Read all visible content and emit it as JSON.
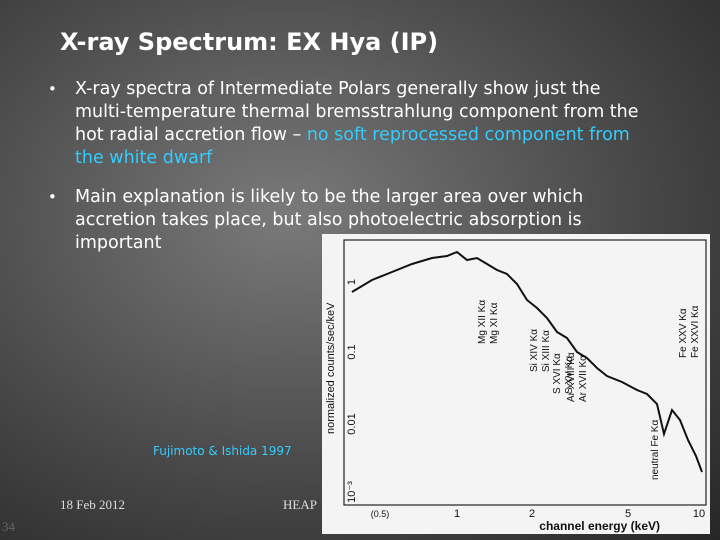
{
  "slide": {
    "title": "X-ray Spectrum: EX Hya (IP)",
    "bullets": [
      {
        "text": "X-ray spectra of Intermediate Polars generally show just the multi-temperature thermal bremsstrahlung component from the hot radial accretion flow – ",
        "highlight": "no soft reprocessed component from the white dwarf"
      },
      {
        "text": "Main explanation is likely to be the larger area over which accretion takes place, but also photoelectric absorption is important",
        "highlight": null
      }
    ],
    "caption": "Fujimoto & Ishida 1997",
    "footer": {
      "date": "18 Feb 2012",
      "event": "HEAP",
      "page": "34"
    },
    "figure": {
      "y_label": "normalized counts/sec/keV",
      "x_label": "channel energy (keV)",
      "y_ticks": [
        "1",
        "0.1",
        "0.01",
        "10⁻³"
      ],
      "x_ticks": [
        "(0.5)",
        "1",
        "2",
        "5",
        "10"
      ],
      "lines": [
        "Mg XI Kα",
        "Mg XII Kα",
        "Si XIII Kα",
        "Si XIV Kα",
        "S XV Kα",
        "S XVI Kα",
        "Ar XVII Kα",
        "Ar XVIII Kα",
        "neutral Fe Kα",
        "Fe XXV Kα",
        "Fe XXVI Kα"
      ]
    }
  }
}
